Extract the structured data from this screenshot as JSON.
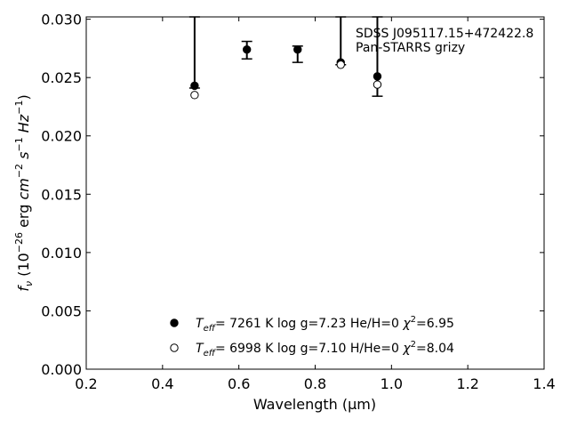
{
  "chart_data": {
    "type": "scatter",
    "title": "",
    "xlabel": "Wavelength (μm)",
    "ylabel": "f_ν (10^-26 erg cm^-2 s^-1 Hz^-1)",
    "xlim": [
      0.2,
      1.4
    ],
    "ylim": [
      0.0,
      0.0302
    ],
    "x_ticks": [
      "0.2",
      "0.4",
      "0.6",
      "0.8",
      "1.0",
      "1.2",
      "1.4"
    ],
    "y_ticks": [
      "0.000",
      "0.005",
      "0.010",
      "0.015",
      "0.020",
      "0.025",
      "0.030"
    ],
    "annotation_lines": [
      "SDSS J095117.15+472422.8",
      "Pan-STARRS grizy"
    ],
    "observed": {
      "points": [
        {
          "band": "g",
          "x": 0.484,
          "y": 0.0243,
          "y_low": 0.0241,
          "y_high": 0.0305
        },
        {
          "band": "r",
          "x": 0.621,
          "y": 0.0274,
          "y_low": 0.0266,
          "y_high": 0.0281
        },
        {
          "band": "i",
          "x": 0.754,
          "y": 0.0274,
          "y_low": 0.0263,
          "y_high": 0.0277
        },
        {
          "band": "z",
          "x": 0.867,
          "y": 0.0263,
          "y_low": 0.0261,
          "y_high": 0.0302
        },
        {
          "band": "y",
          "x": 0.963,
          "y": 0.0251,
          "y_low": 0.0234,
          "y_high": 0.0305
        }
      ]
    },
    "series": [
      {
        "marker": "filled",
        "x": [
          0.484,
          0.621,
          0.754,
          0.867,
          0.963
        ],
        "y": [
          0.0243,
          0.0274,
          0.0274,
          0.0263,
          0.0251
        ]
      },
      {
        "marker": "open",
        "x": [
          0.484,
          0.867,
          0.963
        ],
        "y": [
          0.0235,
          0.0261,
          0.0244
        ]
      }
    ],
    "legend": {
      "placement": "lower-center",
      "entries": [
        {
          "marker": "filled",
          "teff": "7261",
          "logg": "7.23",
          "comp": "He/H=0",
          "chi2": "6.95"
        },
        {
          "marker": "open",
          "teff": "6998",
          "logg": "7.10",
          "comp": "H/He=0",
          "chi2": "8.04"
        }
      ]
    },
    "grid": false
  }
}
